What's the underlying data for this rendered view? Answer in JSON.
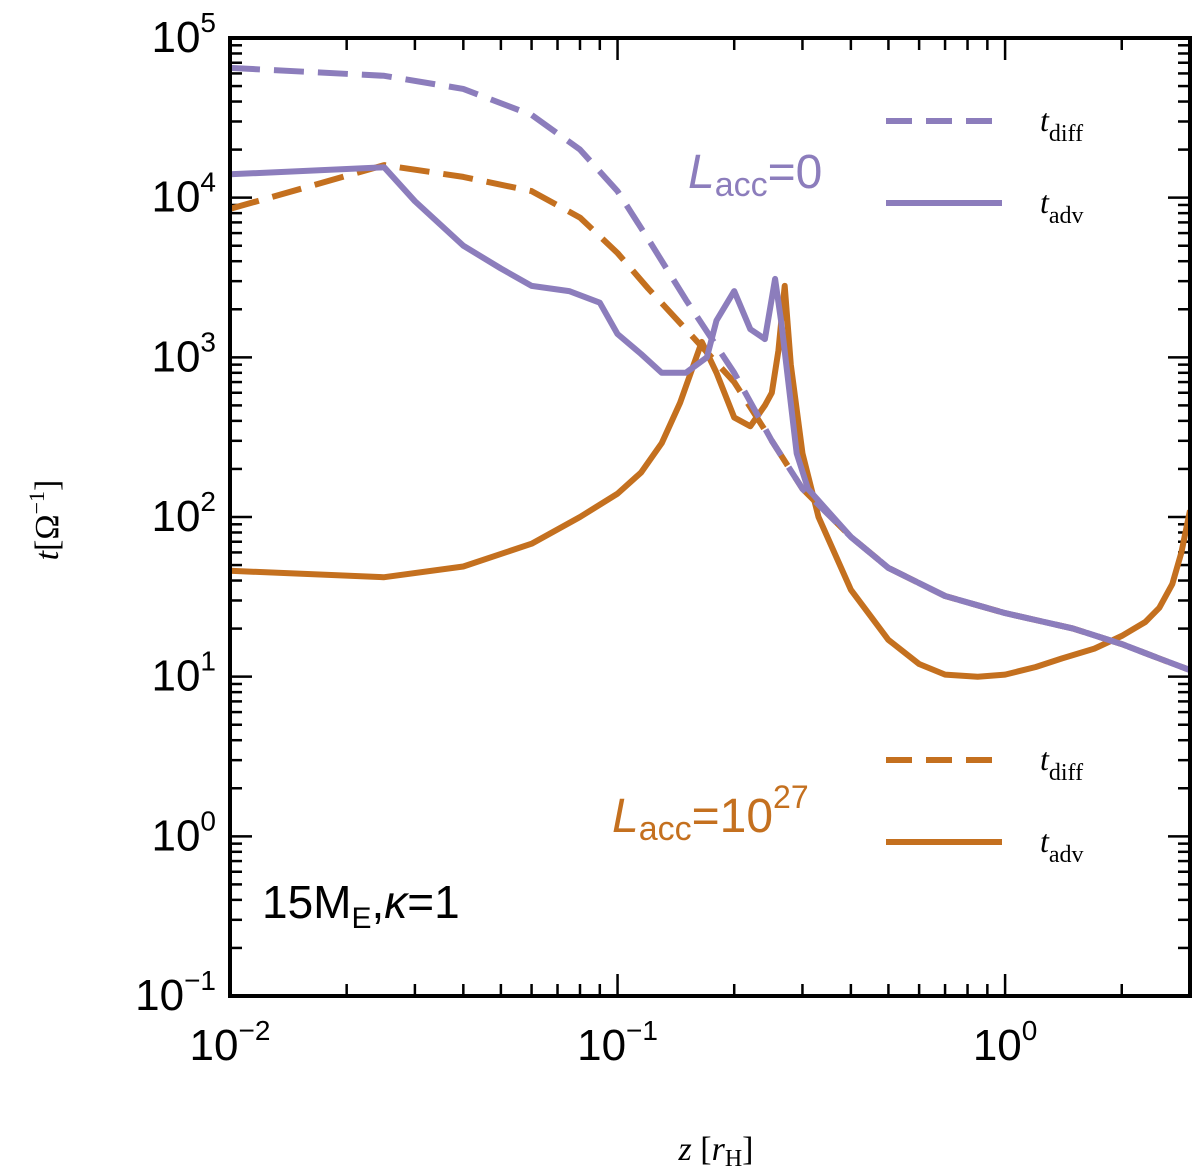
{
  "chart_data": {
    "type": "line",
    "x_scale": "log",
    "y_scale": "log",
    "xlim": [
      0.01,
      3.0
    ],
    "ylim": [
      0.1,
      100000
    ],
    "xlabel": {
      "var": "z",
      "unit": "r",
      "unit_sub": "H"
    },
    "ylabel": {
      "var": "t",
      "unit": "[Ω",
      "unit_sup": "−1",
      "unit_close": "]"
    },
    "x_ticks": [
      {
        "base": "10",
        "exp": "−2",
        "value": 0.01
      },
      {
        "base": "10",
        "exp": "−1",
        "value": 0.1
      },
      {
        "base": "10",
        "exp": "0",
        "value": 1
      }
    ],
    "y_ticks": [
      {
        "base": "10",
        "exp": "−1",
        "value": 0.1
      },
      {
        "base": "10",
        "exp": "0",
        "value": 1
      },
      {
        "base": "10",
        "exp": "1",
        "value": 10
      },
      {
        "base": "10",
        "exp": "2",
        "value": 100
      },
      {
        "base": "10",
        "exp": "3",
        "value": 1000
      },
      {
        "base": "10",
        "exp": "4",
        "value": 10000
      },
      {
        "base": "10",
        "exp": "5",
        "value": 100000
      }
    ],
    "colors": {
      "purple": "#8c7dbc",
      "orange": "#c4701f"
    },
    "series": [
      {
        "name": "t_diff, L_acc=0",
        "color": "#8c7dbc",
        "dash": true,
        "points": [
          [
            0.01,
            65000
          ],
          [
            0.025,
            58000
          ],
          [
            0.04,
            48000
          ],
          [
            0.06,
            33000
          ],
          [
            0.08,
            20000
          ],
          [
            0.1,
            11000
          ],
          [
            0.12,
            5500
          ],
          [
            0.15,
            2300
          ],
          [
            0.2,
            800
          ],
          [
            0.25,
            300
          ],
          [
            0.3,
            150
          ],
          [
            0.4,
            75
          ],
          [
            0.5,
            48
          ],
          [
            0.7,
            32
          ],
          [
            1.0,
            25
          ],
          [
            1.5,
            20
          ],
          [
            2.0,
            16
          ],
          [
            2.5,
            13
          ],
          [
            3.0,
            11
          ]
        ]
      },
      {
        "name": "t_adv, L_acc=0",
        "color": "#8c7dbc",
        "dash": false,
        "points": [
          [
            0.01,
            14000
          ],
          [
            0.025,
            15500
          ],
          [
            0.03,
            9500
          ],
          [
            0.04,
            5000
          ],
          [
            0.05,
            3600
          ],
          [
            0.06,
            2800
          ],
          [
            0.075,
            2600
          ],
          [
            0.09,
            2200
          ],
          [
            0.1,
            1400
          ],
          [
            0.115,
            1050
          ],
          [
            0.13,
            800
          ],
          [
            0.15,
            800
          ],
          [
            0.17,
            1000
          ],
          [
            0.18,
            1700
          ],
          [
            0.2,
            2600
          ],
          [
            0.22,
            1500
          ],
          [
            0.24,
            1300
          ],
          [
            0.255,
            3100
          ],
          [
            0.265,
            1600
          ],
          [
            0.29,
            250
          ],
          [
            0.31,
            150
          ],
          [
            0.4,
            75
          ],
          [
            0.5,
            48
          ],
          [
            0.7,
            32
          ],
          [
            1.0,
            25
          ],
          [
            1.5,
            20
          ],
          [
            2.0,
            16
          ],
          [
            2.5,
            13
          ],
          [
            3.0,
            11
          ]
        ]
      },
      {
        "name": "t_diff, L_acc=10^27",
        "color": "#c4701f",
        "dash": true,
        "points": [
          [
            0.01,
            8500
          ],
          [
            0.025,
            16000
          ],
          [
            0.04,
            13500
          ],
          [
            0.06,
            11000
          ],
          [
            0.08,
            7500
          ],
          [
            0.1,
            4500
          ],
          [
            0.12,
            2700
          ],
          [
            0.15,
            1500
          ],
          [
            0.2,
            700
          ],
          [
            0.25,
            300
          ],
          [
            0.3,
            150
          ],
          [
            0.4,
            75
          ],
          [
            0.5,
            48
          ],
          [
            0.7,
            32
          ],
          [
            1.0,
            25
          ],
          [
            1.5,
            20
          ],
          [
            2.0,
            16
          ],
          [
            2.5,
            13
          ],
          [
            3.0,
            11
          ]
        ]
      },
      {
        "name": "t_adv, L_acc=10^27",
        "color": "#c4701f",
        "dash": false,
        "points": [
          [
            0.01,
            46
          ],
          [
            0.025,
            42
          ],
          [
            0.04,
            49
          ],
          [
            0.06,
            68
          ],
          [
            0.08,
            100
          ],
          [
            0.1,
            140
          ],
          [
            0.115,
            190
          ],
          [
            0.13,
            290
          ],
          [
            0.145,
            520
          ],
          [
            0.165,
            1250
          ],
          [
            0.18,
            800
          ],
          [
            0.2,
            420
          ],
          [
            0.22,
            370
          ],
          [
            0.24,
            500
          ],
          [
            0.25,
            600
          ],
          [
            0.26,
            1100
          ],
          [
            0.27,
            2800
          ],
          [
            0.28,
            900
          ],
          [
            0.3,
            250
          ],
          [
            0.33,
            100
          ],
          [
            0.4,
            35
          ],
          [
            0.5,
            17
          ],
          [
            0.6,
            12
          ],
          [
            0.7,
            10.3
          ],
          [
            0.85,
            10
          ],
          [
            1.0,
            10.3
          ],
          [
            1.2,
            11.5
          ],
          [
            1.4,
            13
          ],
          [
            1.7,
            15
          ],
          [
            2.0,
            18
          ],
          [
            2.3,
            22
          ],
          [
            2.5,
            27
          ],
          [
            2.7,
            38
          ],
          [
            2.85,
            60
          ],
          [
            3.0,
            110
          ]
        ]
      }
    ],
    "legend": {
      "top": [
        {
          "label": "t",
          "sub": "diff",
          "color": "#8c7dbc",
          "dash": true
        },
        {
          "label": "t",
          "sub": "adv",
          "color": "#8c7dbc",
          "dash": false
        }
      ],
      "bottom": [
        {
          "label": "t",
          "sub": "diff",
          "color": "#c4701f",
          "dash": true
        },
        {
          "label": "t",
          "sub": "adv",
          "color": "#c4701f",
          "dash": false
        }
      ]
    },
    "annotations": {
      "top": {
        "main": "L",
        "sub": "acc",
        "rest": "=0"
      },
      "bottom": {
        "main": "L",
        "sub": "acc",
        "rest": "=10",
        "sup": "27"
      },
      "corner": {
        "pre": "15M",
        "sub": "E",
        "mid": ",",
        "kappa": "κ",
        "post": "=1"
      }
    }
  }
}
